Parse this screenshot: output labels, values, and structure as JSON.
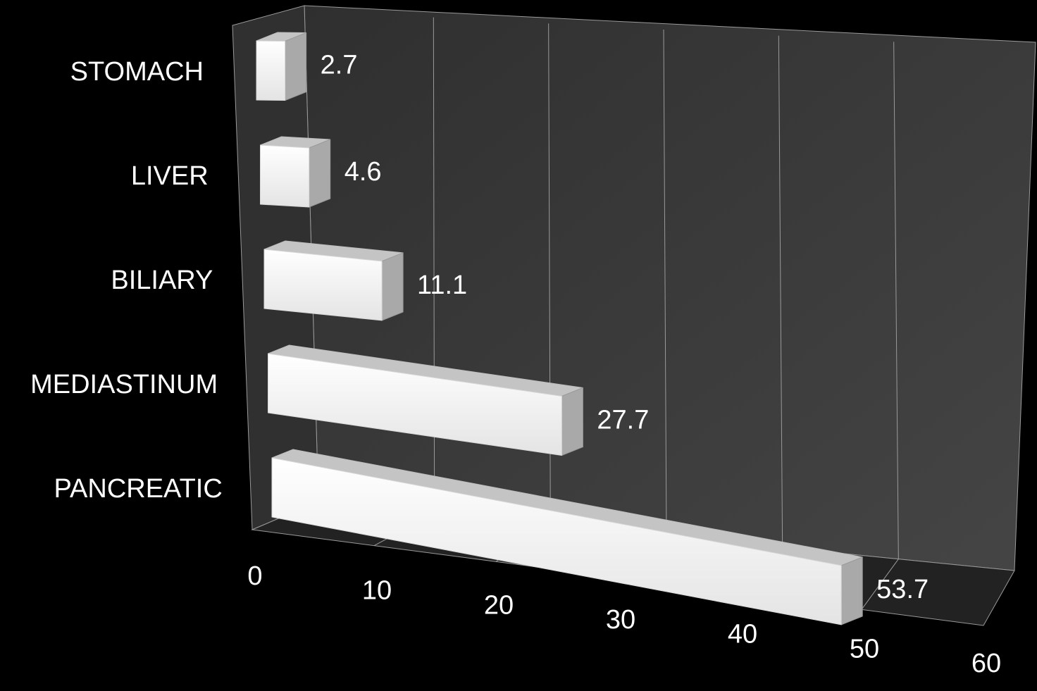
{
  "chart_data": {
    "type": "bar",
    "orientation": "horizontal",
    "style": "3d",
    "categories": [
      "STOMACH",
      "LIVER",
      "BILIARY",
      "MEDIASTINUM",
      "PANCREATIC"
    ],
    "values": [
      2.7,
      4.6,
      11.1,
      27.7,
      53.7
    ],
    "data_labels": [
      "2.7",
      "4.6",
      "11.1",
      "27.7",
      "53.7"
    ],
    "xlim": [
      0,
      60
    ],
    "x_ticks": [
      0,
      10,
      20,
      30,
      40,
      50,
      60
    ],
    "x_tick_labels": [
      "0",
      "10",
      "20",
      "30",
      "40",
      "50",
      "60"
    ],
    "title": "",
    "xlabel": "",
    "ylabel": "",
    "grid": true,
    "legend": "none",
    "colors": {
      "background": "#000000",
      "wall": "#3c3c3c",
      "floor": "#222222",
      "grid": "#9a9a9a",
      "bar_front": "#f7f7f7",
      "bar_top": "#c4c4c4",
      "bar_side": "#a9a9a9",
      "text": "#ffffff"
    }
  }
}
